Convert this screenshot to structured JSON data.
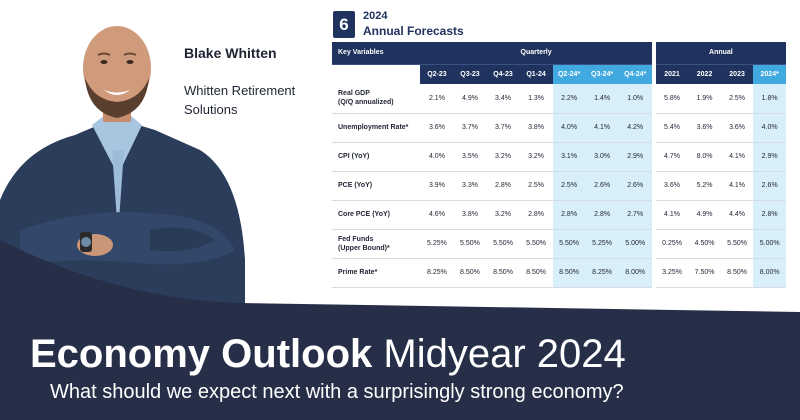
{
  "presenter": {
    "name": "Blake Whitten",
    "company": "Whitten Retirement Solutions"
  },
  "forecast": {
    "badge": "6",
    "year": "2024",
    "title": "Annual Forecasts",
    "header_key": "Key Variables",
    "group_quarterly": "Quarterly",
    "group_annual": "Annual",
    "quarterly_cols": [
      "Q2-23",
      "Q3-23",
      "Q4-23",
      "Q1-24",
      "Q2-24*",
      "Q3-24*",
      "Q4-24*"
    ],
    "annual_cols": [
      "2021",
      "2022",
      "2023",
      "2024*"
    ],
    "rows": [
      {
        "label": [
          "Real GDP",
          "(Q/Q annualized)"
        ],
        "q": [
          "2.1%",
          "4.9%",
          "3.4%",
          "1.3%",
          "2.2%",
          "1.4%",
          "1.0%"
        ],
        "a": [
          "5.8%",
          "1.9%",
          "2.5%",
          "1.8%"
        ]
      },
      {
        "label": [
          "Unemployment Rate*"
        ],
        "q": [
          "3.6%",
          "3.7%",
          "3.7%",
          "3.8%",
          "4.0%",
          "4.1%",
          "4.2%"
        ],
        "a": [
          "5.4%",
          "3.6%",
          "3.6%",
          "4.0%"
        ]
      },
      {
        "label": [
          "CPI (YoY)"
        ],
        "q": [
          "4.0%",
          "3.5%",
          "3.2%",
          "3.2%",
          "3.1%",
          "3.0%",
          "2.9%"
        ],
        "a": [
          "4.7%",
          "8.0%",
          "4.1%",
          "2.9%"
        ]
      },
      {
        "label": [
          "PCE (YoY)"
        ],
        "q": [
          "3.9%",
          "3.3%",
          "2.8%",
          "2.5%",
          "2.5%",
          "2.6%",
          "2.6%"
        ],
        "a": [
          "3.6%",
          "5.2%",
          "4.1%",
          "2.6%"
        ]
      },
      {
        "label": [
          "Core PCE (YoY)"
        ],
        "q": [
          "4.6%",
          "3.8%",
          "3.2%",
          "2.8%",
          "2.8%",
          "2.8%",
          "2.7%"
        ],
        "a": [
          "4.1%",
          "4.9%",
          "4.4%",
          "2.8%"
        ]
      },
      {
        "label": [
          "Fed Funds",
          "(Upper Bound)*"
        ],
        "q": [
          "5.25%",
          "5.50%",
          "5.50%",
          "5.50%",
          "5.50%",
          "5.25%",
          "5.00%"
        ],
        "a": [
          "0.25%",
          "4.50%",
          "5.50%",
          "5.00%"
        ]
      },
      {
        "label": [
          "Prime Rate*"
        ],
        "q": [
          "8.25%",
          "8.50%",
          "8.50%",
          "8.50%",
          "8.50%",
          "8.25%",
          "8.00%"
        ],
        "a": [
          "3.25%",
          "7.50%",
          "8.50%",
          "8.00%"
        ]
      }
    ]
  },
  "banner": {
    "title_bold": "Economy Outlook",
    "title_light": "Midyear 2024",
    "subtitle": "What should we expect next with a surprisingly strong economy?"
  },
  "colors": {
    "navy": "#20335e",
    "banner": "#262e48",
    "highlight_header": "#3fa9e0",
    "highlight_cell": "#d8eef9"
  }
}
